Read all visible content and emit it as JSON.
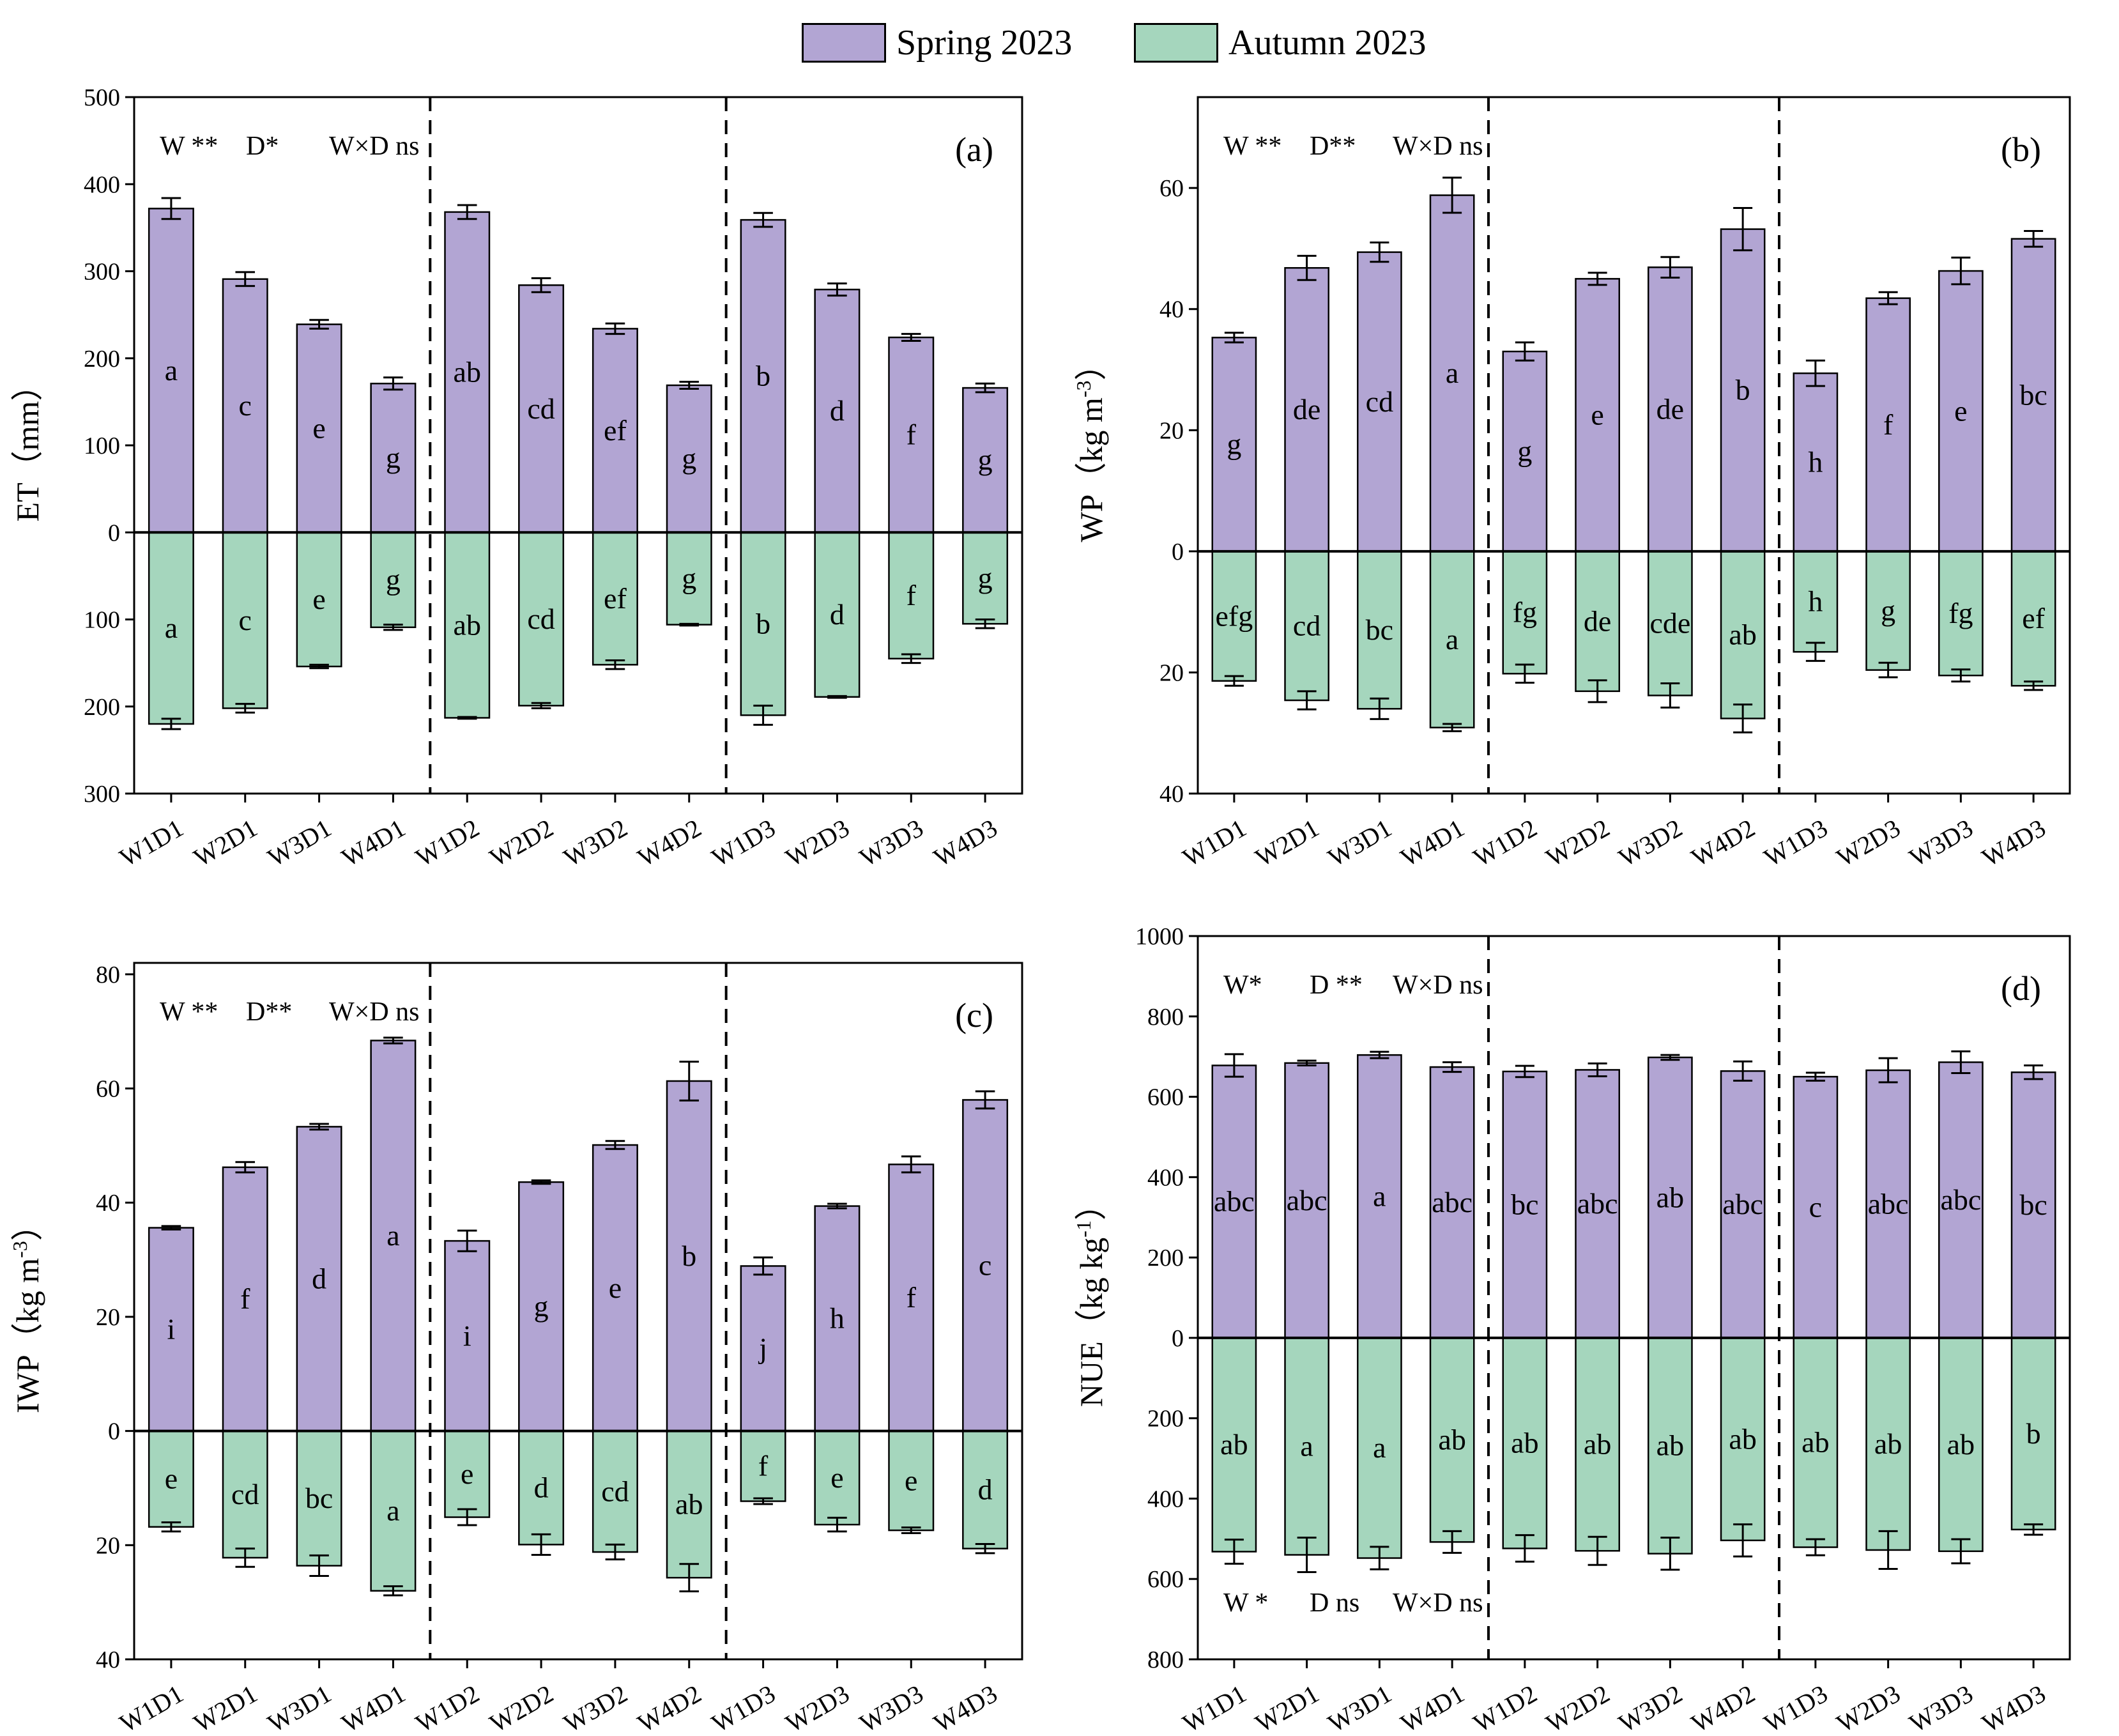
{
  "legend": {
    "spring": "Spring 2023",
    "autumn": "Autumn 2023"
  },
  "colors": {
    "spring": "#b2a5d3",
    "autumn": "#a5d6bd",
    "axis": "#000000"
  },
  "chart_data": [
    {
      "id": "a",
      "type": "bar",
      "panel_label": "(a)",
      "ylabel": "ET（mm）",
      "ylabel_sup": "",
      "ylabel_tail": "",
      "categories": [
        "W1D1",
        "W2D1",
        "W3D1",
        "W4D1",
        "W1D2",
        "W2D2",
        "W3D2",
        "W4D2",
        "W1D3",
        "W2D3",
        "W3D3",
        "W4D3"
      ],
      "ylim": [
        -300,
        500
      ],
      "yticks": [
        500,
        400,
        300,
        200,
        100,
        0,
        -100,
        -200,
        -300
      ],
      "ytick_labels": [
        "500",
        "400",
        "300",
        "200",
        "100",
        "0",
        "100",
        "200",
        "300"
      ],
      "stats_top": [
        "W **",
        "D*",
        "W×D ns"
      ],
      "stats_bottom": [],
      "series": [
        {
          "name": "Spring 2023",
          "values": [
            372,
            291,
            239,
            171,
            368,
            284,
            234,
            169,
            359,
            279,
            224,
            166
          ],
          "errors": [
            12,
            8,
            5,
            7,
            8,
            8,
            6,
            4,
            8,
            7,
            4,
            5
          ],
          "letters": [
            "a",
            "c",
            "e",
            "g",
            "ab",
            "cd",
            "ef",
            "g",
            "b",
            "d",
            "f",
            "g"
          ]
        },
        {
          "name": "Autumn 2023",
          "values": [
            -220,
            -202,
            -154,
            -109,
            -213,
            -199,
            -152,
            -106,
            -210,
            -189,
            -145,
            -105
          ],
          "errors": [
            6,
            5,
            2,
            3,
            1,
            3,
            5,
            1,
            11,
            1,
            5,
            5
          ],
          "letters": [
            "a",
            "c",
            "e",
            "g",
            "ab",
            "cd",
            "ef",
            "g",
            "b",
            "d",
            "f",
            "g"
          ]
        }
      ]
    },
    {
      "id": "b",
      "type": "bar",
      "panel_label": "(b)",
      "ylabel": "WP（kg m",
      "ylabel_sup": "-3",
      "ylabel_tail": "）",
      "categories": [
        "W1D1",
        "W2D1",
        "W3D1",
        "W4D1",
        "W1D2",
        "W2D2",
        "W3D2",
        "W4D2",
        "W1D3",
        "W2D3",
        "W3D3",
        "W4D3"
      ],
      "ylim": [
        -40,
        75
      ],
      "yticks": [
        60,
        40,
        20,
        0,
        -20,
        -40
      ],
      "ytick_labels": [
        "60",
        "40",
        "20",
        "0",
        "20",
        "40"
      ],
      "stats_top": [
        "W **",
        "D**",
        "W×D ns"
      ],
      "stats_bottom": [],
      "series": [
        {
          "name": "Spring 2023",
          "values": [
            35.3,
            46.8,
            49.4,
            58.8,
            33.0,
            45.0,
            46.9,
            53.2,
            29.4,
            41.8,
            46.3,
            51.6
          ],
          "errors": [
            0.8,
            2.0,
            1.6,
            2.9,
            1.5,
            1.0,
            1.7,
            3.5,
            2.1,
            1.0,
            2.2,
            1.3
          ],
          "letters": [
            "g",
            "de",
            "cd",
            "a",
            "g",
            "e",
            "de",
            "b",
            "h",
            "f",
            "e",
            "bc"
          ]
        },
        {
          "name": "Autumn 2023",
          "values": [
            -21.4,
            -24.6,
            -26.0,
            -29.1,
            -20.2,
            -23.1,
            -23.8,
            -27.6,
            -16.6,
            -19.6,
            -20.5,
            -22.2
          ],
          "errors": [
            0.8,
            1.5,
            1.7,
            0.6,
            1.5,
            1.8,
            2.0,
            2.3,
            1.5,
            1.2,
            1.0,
            0.7
          ],
          "letters": [
            "efg",
            "cd",
            "bc",
            "a",
            "fg",
            "de",
            "cde",
            "ab",
            "h",
            "g",
            "fg",
            "ef"
          ]
        }
      ]
    },
    {
      "id": "c",
      "type": "bar",
      "panel_label": "(c)",
      "ylabel": "IWP（kg m",
      "ylabel_sup": "-3",
      "ylabel_tail": "）",
      "categories": [
        "W1D1",
        "W2D1",
        "W3D1",
        "W4D1",
        "W1D2",
        "W2D2",
        "W3D2",
        "W4D2",
        "W1D3",
        "W2D3",
        "W3D3",
        "W4D3"
      ],
      "ylim": [
        -40,
        82
      ],
      "yticks": [
        80,
        60,
        40,
        20,
        0,
        -20,
        -40
      ],
      "ytick_labels": [
        "80",
        "60",
        "40",
        "20",
        "0",
        "20",
        "40"
      ],
      "stats_top": [
        "W **",
        "D**",
        "W×D ns"
      ],
      "stats_bottom": [],
      "series": [
        {
          "name": "Spring 2023",
          "values": [
            35.6,
            46.2,
            53.3,
            68.4,
            33.3,
            43.6,
            50.1,
            61.3,
            28.9,
            39.4,
            46.7,
            58.0
          ],
          "errors": [
            0.3,
            0.9,
            0.5,
            0.5,
            1.8,
            0.3,
            0.7,
            3.4,
            1.5,
            0.4,
            1.4,
            1.5
          ],
          "letters": [
            "i",
            "f",
            "d",
            "a",
            "i",
            "g",
            "e",
            "b",
            "j",
            "h",
            "f",
            "c"
          ]
        },
        {
          "name": "Autumn 2023",
          "values": [
            -16.8,
            -22.2,
            -23.6,
            -28.0,
            -15.1,
            -19.9,
            -21.2,
            -25.7,
            -12.3,
            -16.4,
            -17.4,
            -20.6
          ],
          "errors": [
            0.8,
            1.6,
            1.8,
            0.8,
            1.4,
            1.8,
            1.3,
            2.4,
            0.5,
            1.2,
            0.5,
            0.8
          ],
          "letters": [
            "e",
            "cd",
            "bc",
            "a",
            "e",
            "d",
            "cd",
            "ab",
            "f",
            "e",
            "e",
            "d"
          ]
        }
      ]
    },
    {
      "id": "d",
      "type": "bar",
      "panel_label": "(d)",
      "ylabel": "NUE（kg kg",
      "ylabel_sup": "-1",
      "ylabel_tail": "）",
      "categories": [
        "W1D1",
        "W2D1",
        "W3D1",
        "W4D1",
        "W1D2",
        "W2D2",
        "W3D2",
        "W4D2",
        "W1D3",
        "W2D3",
        "W3D3",
        "W4D3"
      ],
      "ylim": [
        -800,
        1000
      ],
      "yticks": [
        1000,
        800,
        600,
        400,
        200,
        0,
        -200,
        -400,
        -600,
        -800
      ],
      "ytick_labels": [
        "1000",
        "800",
        "600",
        "400",
        "200",
        "0",
        "200",
        "400",
        "600",
        "800"
      ],
      "stats_top": [
        "W*",
        "D **",
        "W×D ns"
      ],
      "stats_bottom": [
        "W *",
        "D ns",
        "W×D ns"
      ],
      "series": [
        {
          "name": "Spring 2023",
          "values": [
            678,
            684,
            704,
            674,
            663,
            667,
            698,
            664,
            650,
            666,
            686,
            661
          ],
          "errors": [
            28,
            6,
            8,
            12,
            14,
            16,
            6,
            24,
            10,
            30,
            27,
            17
          ],
          "letters": [
            "abc",
            "abc",
            "a",
            "abc",
            "bc",
            "abc",
            "ab",
            "abc",
            "c",
            "abc",
            "abc",
            "bc"
          ]
        },
        {
          "name": "Autumn 2023",
          "values": [
            -532,
            -540,
            -548,
            -508,
            -524,
            -530,
            -537,
            -504,
            -521,
            -528,
            -531,
            -477
          ],
          "errors": [
            30,
            43,
            28,
            27,
            33,
            35,
            40,
            40,
            20,
            47,
            30,
            13
          ],
          "letters": [
            "ab",
            "a",
            "a",
            "ab",
            "ab",
            "ab",
            "ab",
            "ab",
            "ab",
            "ab",
            "ab",
            "b"
          ]
        }
      ]
    }
  ]
}
